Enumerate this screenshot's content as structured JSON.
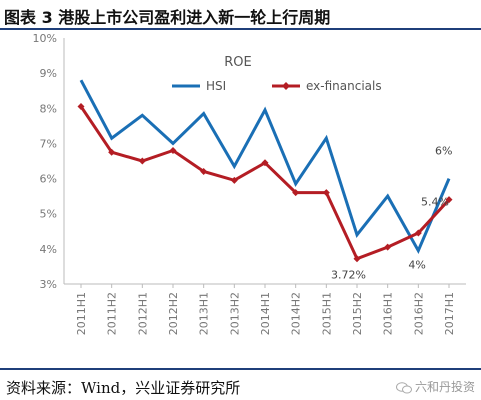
{
  "header": {
    "title": "图表 3 港股上市公司盈利进入新一轮上行周期"
  },
  "footer": {
    "source": "资料来源：Wind，兴业证券研究所",
    "watermark": "六和丹投资"
  },
  "icons": {
    "watermark": "wechat-icon"
  },
  "chart_data": {
    "type": "line",
    "title": "ROE",
    "categories": [
      "2011H1",
      "2011H2",
      "2012H1",
      "2012H2",
      "2013H1",
      "2013H2",
      "2014H1",
      "2014H2",
      "2015H1",
      "2015H2",
      "2016H1",
      "2016H2",
      "2017H1"
    ],
    "ylim": [
      3,
      10
    ],
    "yticks": [
      "3%",
      "4%",
      "5%",
      "6%",
      "7%",
      "8%",
      "9%",
      "10%"
    ],
    "grid": false,
    "legend": "top-center",
    "series": [
      {
        "name": "HSI",
        "color": "#1a6fb5",
        "marker": false,
        "values": [
          8.8,
          7.15,
          7.8,
          7.0,
          7.85,
          6.35,
          7.95,
          5.85,
          7.15,
          4.4,
          5.5,
          3.95,
          6.0
        ]
      },
      {
        "name": "ex-financials",
        "color": "#b41d24",
        "marker": true,
        "values": [
          8.05,
          6.75,
          6.5,
          6.8,
          6.2,
          5.95,
          6.45,
          5.6,
          5.6,
          3.72,
          4.05,
          4.45,
          5.4
        ]
      }
    ],
    "annotations": [
      {
        "text": "3.72%",
        "series": 1,
        "index": 9
      },
      {
        "text": "4%",
        "series": 0,
        "index": 11
      },
      {
        "text": "5.4%",
        "series": 1,
        "index": 12
      },
      {
        "text": "6%",
        "series": 0,
        "index": 12
      }
    ]
  }
}
